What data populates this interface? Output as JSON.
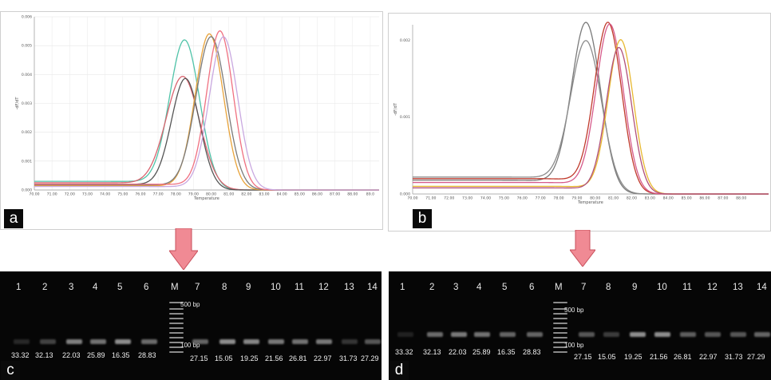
{
  "panels": {
    "a": "a",
    "b": "b",
    "c": "c",
    "d": "d"
  },
  "chart_data": [
    {
      "type": "line",
      "panel": "a",
      "xlabel": "Temperature",
      "ylabel": "-dF/dT",
      "xlim": [
        70,
        89.5
      ],
      "ylim": [
        0,
        0.006
      ],
      "x_ticks": [
        "70.00",
        "71.00",
        "72.00",
        "73.00",
        "74.00",
        "75.00",
        "76.00",
        "77.00",
        "78.00",
        "79.00",
        "80.00",
        "81.00",
        "82.00",
        "83.00",
        "84.00",
        "85.00",
        "86.00",
        "87.00",
        "88.00",
        "89.0"
      ],
      "y_ticks": [
        "0.000",
        "0.001",
        "0.002",
        "0.003",
        "0.004",
        "0.005",
        "0.006"
      ],
      "grid": true,
      "series": [
        {
          "color": "#4fc3a8",
          "peak_x": 78.5,
          "peak_y": 0.00518,
          "width": 0.85,
          "base_y": 0.0003
        },
        {
          "color": "#d9636e",
          "peak_x": 78.4,
          "peak_y": 0.00392,
          "width": 0.95,
          "base_y": 0.00025
        },
        {
          "color": "#555555",
          "peak_x": 78.55,
          "peak_y": 0.00385,
          "width": 0.8,
          "base_y": 0.0002
        },
        {
          "color": "#e8a33a",
          "peak_x": 79.9,
          "peak_y": 0.0054,
          "width": 0.8,
          "base_y": 0.00015
        },
        {
          "color": "#7a7a7a",
          "peak_x": 80.0,
          "peak_y": 0.0053,
          "width": 0.85,
          "base_y": 0.00018
        },
        {
          "color": "#f07080",
          "peak_x": 80.5,
          "peak_y": 0.0055,
          "width": 0.75,
          "base_y": 0.0002
        },
        {
          "color": "#c9a8e0",
          "peak_x": 80.7,
          "peak_y": 0.0053,
          "width": 0.8,
          "base_y": 0.00012
        }
      ]
    },
    {
      "type": "line",
      "panel": "b",
      "xlabel": "Temperature",
      "ylabel": "-dF/dT",
      "xlim": [
        70,
        89.5
      ],
      "ylim": [
        0,
        0.0022
      ],
      "x_ticks": [
        "70.00",
        "71.00",
        "72.00",
        "73.00",
        "74.00",
        "75.00",
        "76.00",
        "77.00",
        "78.00",
        "79.00",
        "80.00",
        "81.00",
        "82.00",
        "83.00",
        "84.00",
        "85.00",
        "86.00",
        "87.00",
        "88.00"
      ],
      "y_ticks": [
        "0.000",
        "0.001",
        "0.002"
      ],
      "grid": false,
      "series": [
        {
          "color": "#7a7a7a",
          "peak_x": 79.5,
          "peak_y": 0.00222,
          "width": 0.8,
          "base_y": 0.00018
        },
        {
          "color": "#8c8c8c",
          "peak_x": 79.5,
          "peak_y": 0.00198,
          "width": 0.85,
          "base_y": 0.00022
        },
        {
          "color": "#c0392b",
          "peak_x": 80.7,
          "peak_y": 0.00222,
          "width": 0.75,
          "base_y": 0.0002
        },
        {
          "color": "#d65a8a",
          "peak_x": 80.8,
          "peak_y": 0.0022,
          "width": 0.75,
          "base_y": 0.00015
        },
        {
          "color": "#e8b830",
          "peak_x": 81.4,
          "peak_y": 0.002,
          "width": 0.7,
          "base_y": 0.0001
        },
        {
          "color": "#b0507a",
          "peak_x": 81.3,
          "peak_y": 0.0019,
          "width": 0.7,
          "base_y": 8e-05
        }
      ]
    }
  ],
  "gel_c": {
    "lanes": [
      "1",
      "2",
      "3",
      "4",
      "5",
      "6",
      "M",
      "7",
      "8",
      "9",
      "10",
      "11",
      "12",
      "13",
      "14"
    ],
    "marker_500": "500 bp",
    "marker_100": "100 bp",
    "ct_values": [
      "33.32",
      "32.13",
      "22.03",
      "25.89",
      "16.35",
      "28.83",
      "27.15",
      "15.05",
      "19.25",
      "21.56",
      "26.81",
      "22.97",
      "31.73",
      "27.29"
    ]
  },
  "gel_d": {
    "lanes": [
      "1",
      "2",
      "3",
      "4",
      "5",
      "6",
      "M",
      "7",
      "8",
      "9",
      "10",
      "11",
      "12",
      "13",
      "14"
    ],
    "marker_500": "500 bp",
    "marker_100": "100 bp",
    "ct_values": [
      "33.32",
      "32.13",
      "22.03",
      "25.89",
      "16.35",
      "28.83",
      "27.15",
      "15.05",
      "19.25",
      "21.56",
      "26.81",
      "22.97",
      "31.73",
      "27.29"
    ]
  }
}
